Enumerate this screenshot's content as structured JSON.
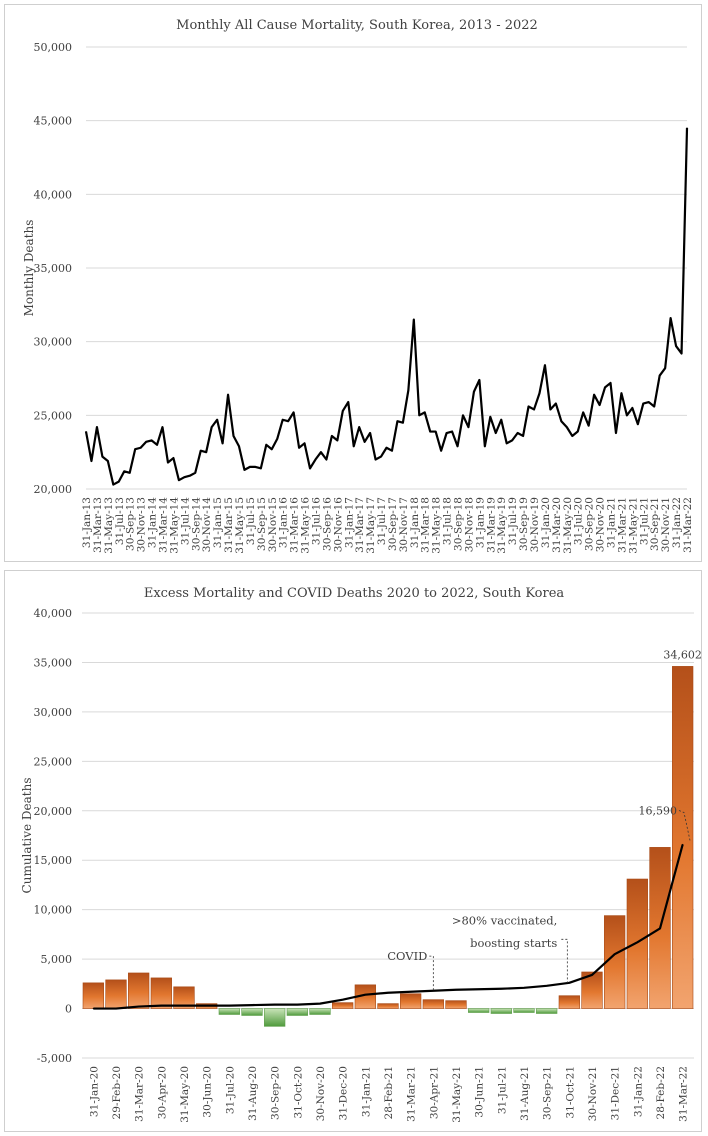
{
  "chart_data": [
    {
      "type": "line",
      "title": "Monthly All Cause Mortality, South Korea, 2013 - 2022",
      "xlabel": "",
      "ylabel": "Monthly Deaths",
      "ylim": [
        20000,
        50000
      ],
      "yticks": [
        "20,000",
        "25,000",
        "30,000",
        "35,000",
        "40,000",
        "45,000",
        "50,000"
      ],
      "grid": true,
      "legend": "none",
      "xlabels": [
        "31-Jan-13",
        "31-Mar-13",
        "31-May-13",
        "31-Jul-13",
        "30-Sep-13",
        "30-Nov-13",
        "31-Jan-14",
        "31-Mar-14",
        "31-May-14",
        "31-Jul-14",
        "30-Sep-14",
        "30-Nov-14",
        "31-Jan-15",
        "31-Mar-15",
        "31-May-15",
        "31-Jul-15",
        "30-Sep-15",
        "30-Nov-15",
        "31-Jan-16",
        "31-Mar-16",
        "31-May-16",
        "31-Jul-16",
        "30-Sep-16",
        "30-Nov-16",
        "31-Jan-17",
        "31-Mar-17",
        "31-May-17",
        "31-Jul-17",
        "30-Sep-17",
        "30-Nov-17",
        "31-Jan-18",
        "31-Mar-18",
        "31-May-18",
        "31-Jul-18",
        "30-Sep-18",
        "30-Nov-18",
        "31-Jan-19",
        "31-Mar-19",
        "31-May-19",
        "31-Jul-19",
        "30-Sep-19",
        "30-Nov-19",
        "31-Jan-20",
        "31-Mar-20",
        "31-May-20",
        "31-Jul-20",
        "30-Sep-20",
        "30-Nov-20",
        "31-Jan-21",
        "31-Mar-21",
        "31-May-21",
        "31-Jul-21",
        "30-Sep-21",
        "30-Nov-21",
        "31-Jan-22",
        "31-Mar-22"
      ],
      "series": [
        {
          "color": "#000000",
          "values": [
            23900,
            21900,
            24200,
            22200,
            21900,
            20300,
            20500,
            21200,
            21100,
            22700,
            22800,
            23200,
            23300,
            23000,
            24200,
            21800,
            22100,
            20600,
            20800,
            20900,
            21100,
            22600,
            22500,
            24200,
            24700,
            23100,
            26400,
            23600,
            22900,
            21300,
            21500,
            21500,
            21400,
            23000,
            22700,
            23400,
            24700,
            24600,
            25200,
            22800,
            23100,
            21400,
            22000,
            22500,
            22000,
            23600,
            23300,
            25300,
            25900,
            22900,
            24200,
            23200,
            23800,
            22000,
            22200,
            22800,
            22600,
            24600,
            24500,
            26700,
            31500,
            25000,
            25200,
            23900,
            23900,
            22600,
            23800,
            23900,
            22900,
            25000,
            24200,
            26600,
            27400,
            22900,
            24900,
            23800,
            24700,
            23100,
            23300,
            23800,
            23600,
            25600,
            25400,
            26500,
            28400,
            25400,
            25800,
            24600,
            24200,
            23600,
            23900,
            25200,
            24300,
            26400,
            25700,
            26900,
            27200,
            23800,
            26500,
            25000,
            25500,
            24400,
            25800,
            25900,
            25600,
            27700,
            28200,
            31600,
            29700,
            29200,
            44500
          ]
        }
      ]
    },
    {
      "type": "bar",
      "title": "Excess Mortality and COVID Deaths 2020 to 2022, South Korea",
      "xlabel": "",
      "ylabel": "Cumulative Deaths",
      "ylim": [
        -5000,
        40000
      ],
      "yticks": [
        "-5,000",
        "0",
        "5,000",
        "10,000",
        "15,000",
        "20,000",
        "25,000",
        "30,000",
        "35,000",
        "40,000"
      ],
      "grid": true,
      "legend": "none",
      "categories": [
        "31-Jan-20",
        "29-Feb-20",
        "31-Mar-20",
        "30-Apr-20",
        "31-May-20",
        "30-Jun-20",
        "31-Jul-20",
        "31-Aug-20",
        "30-Sep-20",
        "31-Oct-20",
        "30-Nov-20",
        "31-Dec-20",
        "31-Jan-21",
        "28-Feb-21",
        "31-Mar-21",
        "30-Apr-21",
        "31-May-21",
        "30-Jun-21",
        "31-Jul-21",
        "31-Aug-21",
        "30-Sep-21",
        "31-Oct-21",
        "30-Nov-21",
        "31-Dec-21",
        "31-Jan-22",
        "28-Feb-22",
        "31-Mar-22"
      ],
      "series": [
        {
          "values": [
            2600,
            2900,
            3600,
            3100,
            2200,
            500,
            -600,
            -700,
            -1800,
            -700,
            -600,
            600,
            2400,
            500,
            1500,
            900,
            800,
            -400,
            -500,
            -400,
            -500,
            1300,
            3700,
            9400,
            13100,
            16300,
            34602
          ]
        },
        {
          "values": [
            0,
            0,
            200,
            300,
            300,
            300,
            300,
            350,
            400,
            400,
            500,
            900,
            1400,
            1600,
            1700,
            1800,
            1900,
            1950,
            2000,
            2100,
            2300,
            2600,
            3400,
            5500,
            6700,
            8100,
            16590
          ]
        }
      ],
      "data_labels": [
        "34,602",
        "16,590"
      ],
      "annotations": [
        "COVID",
        ">80% vaccinated,",
        "boosting starts"
      ],
      "positive_color": "#e2772f",
      "negative_color": "#7bb661"
    }
  ]
}
